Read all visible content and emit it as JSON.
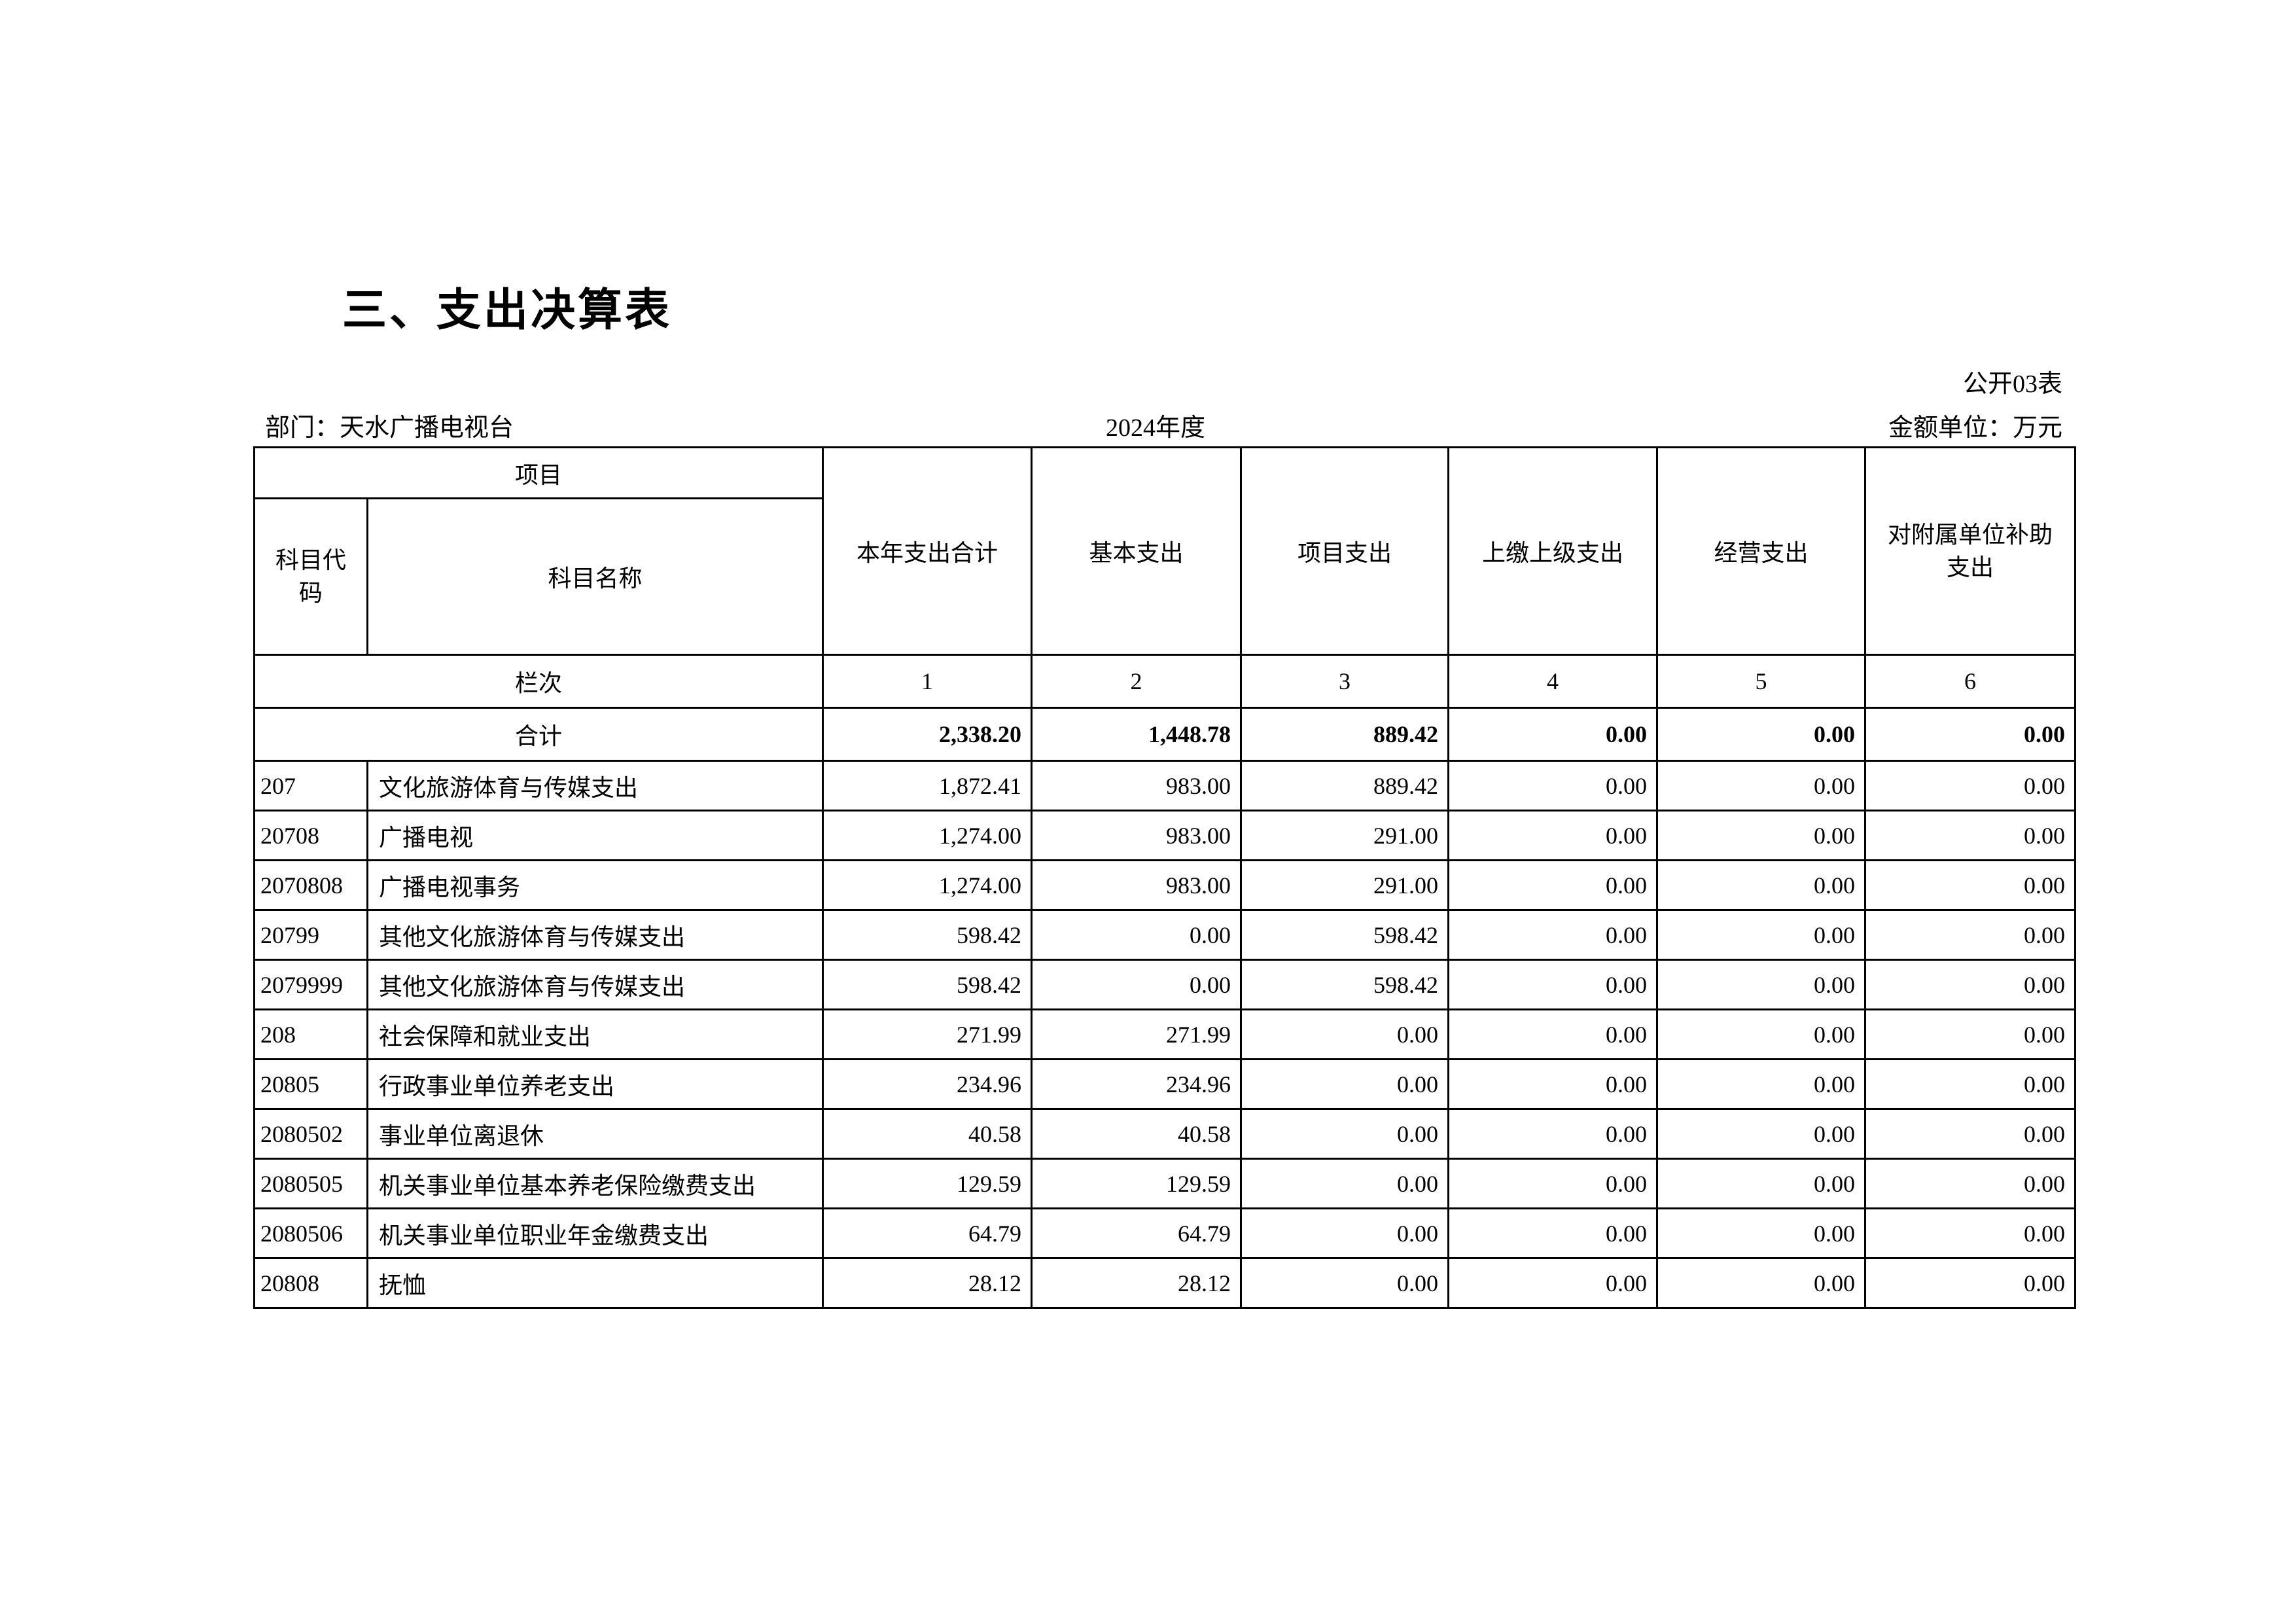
{
  "title": "三、支出决算表",
  "table_no": "公开03表",
  "department": "部门：天水广播电视台",
  "year": "2024年度",
  "unit": "金额单位：万元",
  "headers": {
    "item": "项目",
    "code": "科目代码",
    "name": "科目名称",
    "cols": [
      "本年支出合计",
      "基本支出",
      "项目支出",
      "上缴上级支出",
      "经营支出",
      "对附属单位补助支出"
    ]
  },
  "column_index": {
    "label": "栏次",
    "numbers": [
      "1",
      "2",
      "3",
      "4",
      "5",
      "6"
    ]
  },
  "total": {
    "label": "合计",
    "values": [
      "2,338.20",
      "1,448.78",
      "889.42",
      "0.00",
      "0.00",
      "0.00"
    ]
  },
  "rows": [
    {
      "code": "207",
      "name": "文化旅游体育与传媒支出",
      "values": [
        "1,872.41",
        "983.00",
        "889.42",
        "0.00",
        "0.00",
        "0.00"
      ]
    },
    {
      "code": "20708",
      "name": "广播电视",
      "values": [
        "1,274.00",
        "983.00",
        "291.00",
        "0.00",
        "0.00",
        "0.00"
      ]
    },
    {
      "code": "2070808",
      "name": "广播电视事务",
      "values": [
        "1,274.00",
        "983.00",
        "291.00",
        "0.00",
        "0.00",
        "0.00"
      ]
    },
    {
      "code": "20799",
      "name": "其他文化旅游体育与传媒支出",
      "values": [
        "598.42",
        "0.00",
        "598.42",
        "0.00",
        "0.00",
        "0.00"
      ]
    },
    {
      "code": "2079999",
      "name": "其他文化旅游体育与传媒支出",
      "values": [
        "598.42",
        "0.00",
        "598.42",
        "0.00",
        "0.00",
        "0.00"
      ]
    },
    {
      "code": "208",
      "name": "社会保障和就业支出",
      "values": [
        "271.99",
        "271.99",
        "0.00",
        "0.00",
        "0.00",
        "0.00"
      ]
    },
    {
      "code": "20805",
      "name": "行政事业单位养老支出",
      "values": [
        "234.96",
        "234.96",
        "0.00",
        "0.00",
        "0.00",
        "0.00"
      ]
    },
    {
      "code": "2080502",
      "name": "事业单位离退休",
      "values": [
        "40.58",
        "40.58",
        "0.00",
        "0.00",
        "0.00",
        "0.00"
      ]
    },
    {
      "code": "2080505",
      "name": "机关事业单位基本养老保险缴费支出",
      "values": [
        "129.59",
        "129.59",
        "0.00",
        "0.00",
        "0.00",
        "0.00"
      ]
    },
    {
      "code": "2080506",
      "name": "机关事业单位职业年金缴费支出",
      "values": [
        "64.79",
        "64.79",
        "0.00",
        "0.00",
        "0.00",
        "0.00"
      ]
    },
    {
      "code": "20808",
      "name": "抚恤",
      "values": [
        "28.12",
        "28.12",
        "0.00",
        "0.00",
        "0.00",
        "0.00"
      ]
    }
  ]
}
